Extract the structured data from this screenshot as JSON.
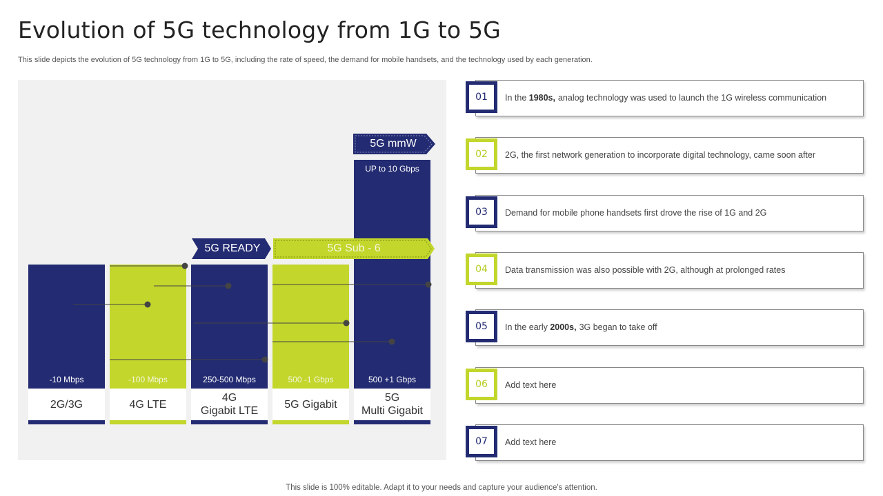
{
  "title": "Evolution of 5G technology from 1G to 5G",
  "subtitle": "This slide depicts the evolution of 5G technology from 1G to 5G, including the rate of speed, the demand for mobile handsets, and the technology used by each generation.",
  "footer": "This slide is 100% editable. Adapt it to your needs and capture your audience's attention.",
  "colors": {
    "navy": "#232b72",
    "green": "#c2d62c",
    "panel": "#f1f1f1"
  },
  "chart": {
    "bars": [
      {
        "label": "2G/3G",
        "speed": "-10 Mbps",
        "color": "navy"
      },
      {
        "label": "4G LTE",
        "speed": "-100 Mbps",
        "color": "green"
      },
      {
        "label": "4G\nGigabit LTE",
        "speed": "250-500 Mbps",
        "color": "navy"
      },
      {
        "label": "5G Gigabit",
        "speed": "500 -1 Gbps",
        "color": "green"
      },
      {
        "label": "5G\nMulti Gigabit",
        "speed": "500 +1 Gbps",
        "top_speed": "UP to 10 Gbps",
        "color": "navy"
      }
    ],
    "tags": {
      "ready": "5G READY",
      "sub6": "5G Sub - 6",
      "mmw": "5G mmW"
    }
  },
  "steps": [
    {
      "num": "01",
      "color": "navy",
      "pre": "In the ",
      "bold": "1980s,",
      "post": "analog technology was used to launch the 1G wireless communication"
    },
    {
      "num": "02",
      "color": "green",
      "pre": "",
      "bold": "",
      "post": "2G, the first network generation to incorporate digital technology, came soon after"
    },
    {
      "num": "03",
      "color": "navy",
      "pre": "",
      "bold": "",
      "post": "Demand for mobile phone handsets first drove the rise of 1G and 2G"
    },
    {
      "num": "04",
      "color": "green",
      "pre": "",
      "bold": "",
      "post": "Data transmission was also possible with 2G, although at prolonged rates"
    },
    {
      "num": "05",
      "color": "navy",
      "pre": "In the early ",
      "bold": "2000s,",
      "post": "3G began to take off"
    },
    {
      "num": "06",
      "color": "green",
      "pre": "",
      "bold": "",
      "post": "Add text here"
    },
    {
      "num": "07",
      "color": "navy",
      "pre": "",
      "bold": "",
      "post": "Add text here"
    }
  ]
}
